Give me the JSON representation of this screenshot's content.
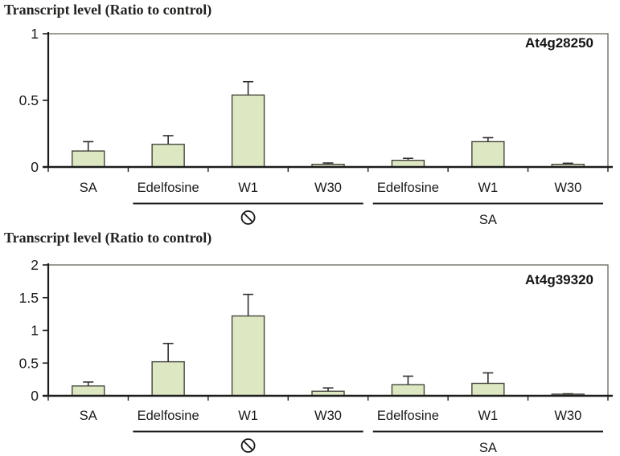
{
  "style": {
    "bar_fill": "#dde8c3",
    "bar_stroke": "#45453c",
    "axis_color": "#1c1c1c",
    "frame_color": "#66665e",
    "error_color": "#2e2e2e",
    "text_color": "#1a1a1a"
  },
  "chart_data": [
    {
      "type": "bar",
      "title": "Transcript level (Ratio to control)",
      "gene_label": "At4g28250",
      "categories": [
        "SA",
        "Edelfosine",
        "W1",
        "W30",
        "Edelfosine",
        "W1",
        "W30"
      ],
      "values": [
        0.12,
        0.17,
        0.54,
        0.02,
        0.05,
        0.19,
        0.02
      ],
      "errors_up": [
        0.07,
        0.065,
        0.1,
        0.01,
        0.015,
        0.03,
        0.008
      ],
      "ylim": [
        0,
        1
      ],
      "ytick_values": [
        0,
        0.5,
        1
      ],
      "ytick_labels": [
        "0",
        "0.5",
        "1"
      ],
      "grid": "off",
      "groups": [
        {
          "icon": "no-symbol",
          "label": "",
          "start": 1,
          "end": 3
        },
        {
          "icon": "",
          "label": "SA",
          "start": 4,
          "end": 6
        }
      ]
    },
    {
      "type": "bar",
      "title": "Transcript level (Ratio to control)",
      "gene_label": "At4g39320",
      "categories": [
        "SA",
        "Edelfosine",
        "W1",
        "W30",
        "Edelfosine",
        "W1",
        "W30"
      ],
      "values": [
        0.15,
        0.52,
        1.22,
        0.07,
        0.17,
        0.19,
        0.025
      ],
      "errors_up": [
        0.06,
        0.28,
        0.33,
        0.05,
        0.13,
        0.16,
        0.005
      ],
      "ylim": [
        0,
        2
      ],
      "ytick_values": [
        0,
        0.5,
        1,
        1.5,
        2
      ],
      "ytick_labels": [
        "0",
        "0.5",
        "1",
        "1.5",
        "2"
      ],
      "grid": "off",
      "groups": [
        {
          "icon": "no-symbol",
          "label": "",
          "start": 1,
          "end": 3
        },
        {
          "icon": "",
          "label": "SA",
          "start": 4,
          "end": 6
        }
      ]
    }
  ]
}
